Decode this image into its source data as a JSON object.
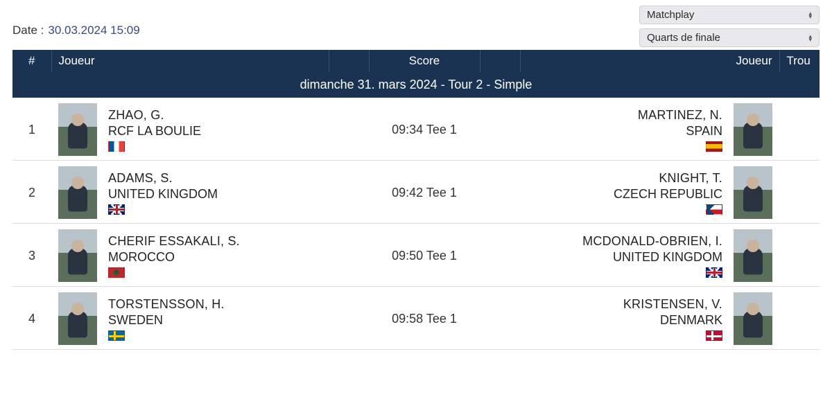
{
  "header": {
    "date_label": "Date :",
    "date_value": "30.03.2024 15:09",
    "select_format": "Matchplay",
    "select_round": "Quarts de finale"
  },
  "columns": {
    "num": "#",
    "player_left": "Joueur",
    "score": "Score",
    "player_right": "Joueur",
    "hole": "Trou"
  },
  "section_title": "dimanche 31. mars 2024 - Tour 2 - Simple",
  "matches": [
    {
      "num": "1",
      "left": {
        "name": "ZHAO, G.",
        "club": "RCF LA BOULIE",
        "flag": "fr"
      },
      "score": "09:34 Tee 1",
      "right": {
        "name": "MARTINEZ, N.",
        "club": "SPAIN",
        "flag": "es"
      }
    },
    {
      "num": "2",
      "left": {
        "name": "ADAMS, S.",
        "club": "UNITED KINGDOM",
        "flag": "gb"
      },
      "score": "09:42 Tee 1",
      "right": {
        "name": "KNIGHT, T.",
        "club": "CZECH REPUBLIC",
        "flag": "cz"
      }
    },
    {
      "num": "3",
      "left": {
        "name": "CHERIF ESSAKALI, S.",
        "club": "MOROCCO",
        "flag": "ma"
      },
      "score": "09:50 Tee 1",
      "right": {
        "name": "MCDONALD-OBRIEN, I.",
        "club": "UNITED KINGDOM",
        "flag": "gb"
      }
    },
    {
      "num": "4",
      "left": {
        "name": "TORSTENSSON, H.",
        "club": "SWEDEN",
        "flag": "se"
      },
      "score": "09:58 Tee 1",
      "right": {
        "name": "KRISTENSEN, V.",
        "club": "DENMARK",
        "flag": "dk"
      }
    }
  ]
}
